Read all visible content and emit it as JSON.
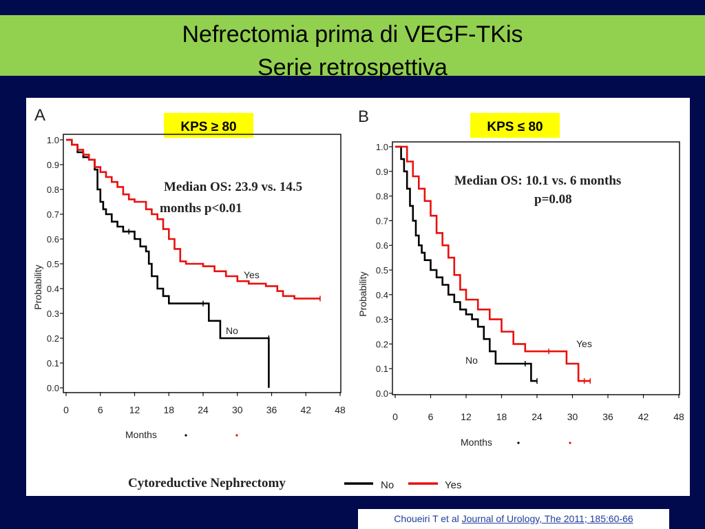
{
  "slide": {
    "title_line1": "Nefrectomia prima di VEGF-TKis",
    "title_line2": "Serie retrospettiva",
    "colors": {
      "background": "#000a4d",
      "title_band": "#92d050",
      "badge": "#ffff00",
      "no_series": "#000000",
      "yes_series": "#e8100c"
    }
  },
  "citation": {
    "author": "Choueiri T et al",
    "journal_link": "Journal of Urology, The 2011; 185:60-66"
  },
  "figure": {
    "legend_title": "Cytoreductive Nephrectomy",
    "legend_no": "No",
    "legend_yes": "Yes"
  },
  "chart_data": [
    {
      "type": "line",
      "panel_letter": "A",
      "badge": "KPS ≥ 80",
      "annotation_line1": "Median OS:  23.9   vs. 14.5",
      "annotation_line2": "months p<0.01",
      "xlabel": "Months",
      "ylabel": "Probability",
      "xlim": [
        0,
        48
      ],
      "ylim": [
        0,
        1
      ],
      "xticks": [
        "0",
        "6",
        "12",
        "18",
        "24",
        "30",
        "36",
        "42",
        "48"
      ],
      "yticks": [
        "0.0",
        "0.1",
        "0.2",
        "0.3",
        "0.4",
        "0.5",
        "0.6",
        "0.7",
        "0.8",
        "0.9",
        "1.0"
      ],
      "series": [
        {
          "name": "No",
          "color": "#000000",
          "x": [
            0,
            1,
            2,
            3,
            4,
            5,
            5.5,
            6,
            6.5,
            7,
            8,
            9,
            10,
            11,
            12,
            13,
            14,
            14.5,
            15,
            16,
            17,
            18,
            24,
            25,
            27,
            35.5,
            35.5
          ],
          "y": [
            1.0,
            0.98,
            0.95,
            0.93,
            0.92,
            0.88,
            0.8,
            0.75,
            0.72,
            0.7,
            0.67,
            0.65,
            0.63,
            0.63,
            0.6,
            0.57,
            0.55,
            0.5,
            0.45,
            0.4,
            0.37,
            0.34,
            0.34,
            0.27,
            0.2,
            0.2,
            0.0
          ]
        },
        {
          "name": "Yes",
          "color": "#e8100c",
          "x": [
            0,
            1,
            2,
            3,
            4,
            5,
            6,
            7,
            8,
            9,
            10,
            11,
            12,
            14,
            15,
            16,
            17,
            18,
            19,
            20,
            21,
            24,
            26,
            28,
            30,
            32,
            35,
            37,
            38,
            40,
            44.5
          ],
          "y": [
            1.0,
            0.98,
            0.96,
            0.94,
            0.92,
            0.89,
            0.87,
            0.85,
            0.83,
            0.81,
            0.78,
            0.76,
            0.75,
            0.72,
            0.7,
            0.68,
            0.64,
            0.6,
            0.56,
            0.51,
            0.5,
            0.49,
            0.47,
            0.45,
            0.43,
            0.42,
            0.41,
            0.39,
            0.37,
            0.36,
            0.36
          ]
        }
      ],
      "series_labels": [
        "No",
        "Yes"
      ],
      "censor_legend_label": "Months"
    },
    {
      "type": "line",
      "panel_letter": "B",
      "badge": "KPS ≤ 80",
      "annotation_line1": "Median OS: 10.1 vs. 6  months",
      "annotation_line2": "p=0.08",
      "xlabel": "Months",
      "ylabel": "Probability",
      "xlim": [
        0,
        48
      ],
      "ylim": [
        0,
        1
      ],
      "xticks": [
        "0",
        "6",
        "12",
        "18",
        "24",
        "30",
        "36",
        "42",
        "48"
      ],
      "yticks": [
        "0.0",
        "0.1",
        "0.2",
        "0.3",
        "0.4",
        "0.5",
        "0.6",
        "0.7",
        "0.8",
        "0.9",
        "1.0"
      ],
      "series": [
        {
          "name": "No",
          "color": "#000000",
          "x": [
            0,
            1,
            1.5,
            2,
            2.5,
            3,
            3.5,
            4,
            4.5,
            5,
            6,
            7,
            8,
            9,
            10,
            11,
            12,
            13,
            14,
            15,
            16,
            17,
            22,
            23,
            24
          ],
          "y": [
            1.0,
            0.95,
            0.9,
            0.83,
            0.76,
            0.7,
            0.64,
            0.6,
            0.57,
            0.54,
            0.5,
            0.47,
            0.44,
            0.4,
            0.37,
            0.34,
            0.32,
            0.3,
            0.27,
            0.22,
            0.17,
            0.12,
            0.12,
            0.05,
            0.05
          ]
        },
        {
          "name": "Yes",
          "color": "#e8100c",
          "x": [
            0,
            2,
            3,
            4,
            5,
            6,
            7,
            8,
            9,
            10,
            11,
            12,
            14,
            16,
            18,
            20,
            22,
            26,
            29,
            31,
            32,
            33
          ],
          "y": [
            1.0,
            0.94,
            0.88,
            0.83,
            0.78,
            0.72,
            0.65,
            0.6,
            0.55,
            0.48,
            0.42,
            0.38,
            0.34,
            0.3,
            0.25,
            0.2,
            0.17,
            0.17,
            0.12,
            0.05,
            0.05,
            0.05
          ]
        }
      ],
      "series_labels": [
        "No",
        "Yes"
      ],
      "censor_legend_label": "Months"
    }
  ]
}
